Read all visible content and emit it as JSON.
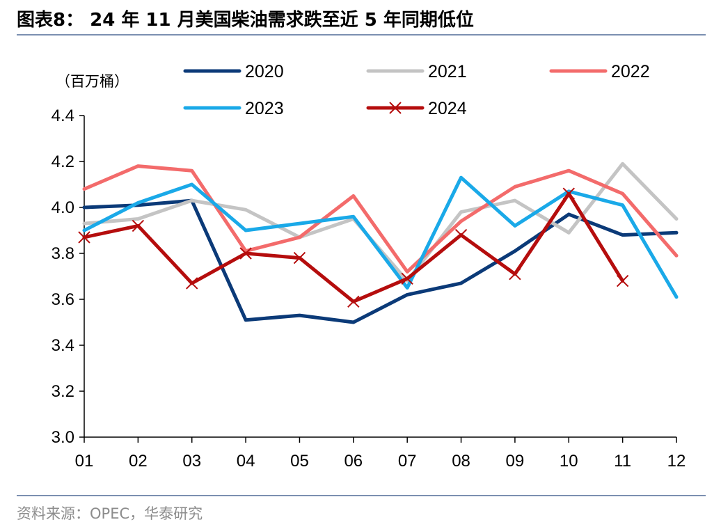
{
  "title": "图表8： 24 年 11 月美国柴油需求跌至近 5 年同期低位",
  "source": "资料来源：OPEC，华泰研究",
  "chart_data": {
    "type": "line",
    "unit_label": "（百万桶）",
    "categories": [
      "01",
      "02",
      "03",
      "04",
      "05",
      "06",
      "07",
      "08",
      "09",
      "10",
      "11",
      "12"
    ],
    "ylim": [
      3.0,
      4.4
    ],
    "yticks": [
      "3.0",
      "3.2",
      "3.4",
      "3.6",
      "3.8",
      "4.0",
      "4.2",
      "4.4"
    ],
    "grid": false,
    "legend_position": "top",
    "series": [
      {
        "name": "2020",
        "color": "#0b3a78",
        "marker": "none",
        "values": [
          4.0,
          4.01,
          4.03,
          3.51,
          3.53,
          3.5,
          3.62,
          3.67,
          3.81,
          3.97,
          3.88,
          3.89
        ]
      },
      {
        "name": "2021",
        "color": "#c4c4c4",
        "marker": "none",
        "values": [
          3.93,
          3.95,
          4.03,
          3.99,
          3.87,
          3.95,
          3.68,
          3.98,
          4.03,
          3.89,
          4.19,
          3.95
        ]
      },
      {
        "name": "2022",
        "color": "#f36b6b",
        "marker": "none",
        "values": [
          4.08,
          4.18,
          4.16,
          3.81,
          3.87,
          4.05,
          3.72,
          3.94,
          4.09,
          4.16,
          4.06,
          3.79
        ]
      },
      {
        "name": "2023",
        "color": "#1aa9e8",
        "marker": "none",
        "values": [
          3.9,
          4.02,
          4.1,
          3.9,
          3.93,
          3.96,
          3.65,
          4.13,
          3.92,
          4.07,
          4.01,
          3.61
        ]
      },
      {
        "name": "2024",
        "color": "#b50d0d",
        "marker": "x",
        "values": [
          3.87,
          3.92,
          3.67,
          3.8,
          3.78,
          3.59,
          3.69,
          3.88,
          3.71,
          4.06,
          3.68,
          null
        ]
      }
    ]
  }
}
